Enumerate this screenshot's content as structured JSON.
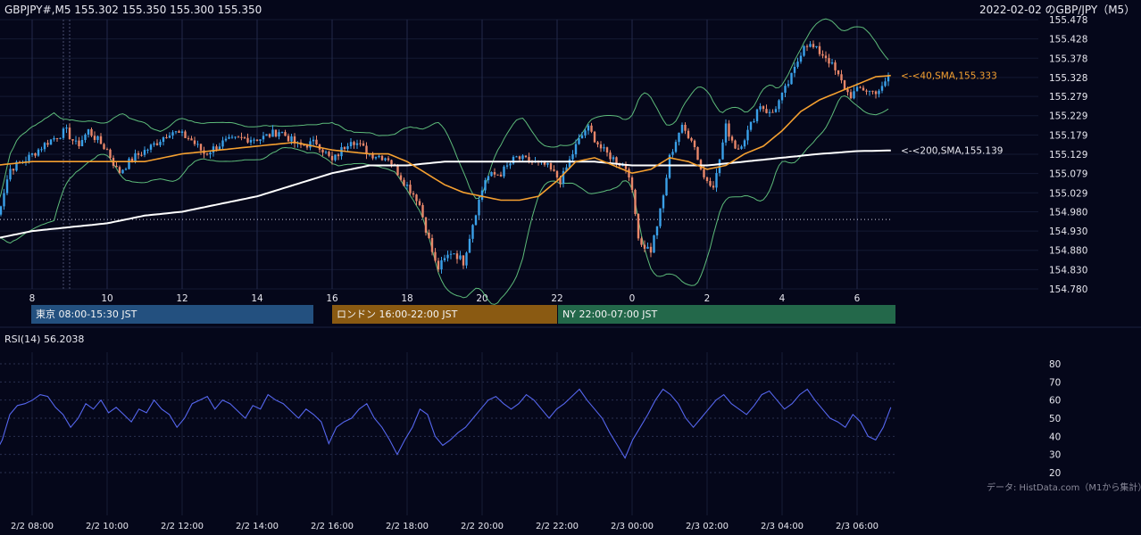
{
  "header": {
    "symbol_ohlc": "GBPJPY#,M5 155.302 155.350 155.300 155.350",
    "title_right": "2022-02-02 のGBP/JPY（M5）"
  },
  "ma_labels": {
    "sma40": "<-<40,SMA,155.333",
    "sma200": "<-<200,SMA,155.139"
  },
  "sessions": {
    "tokyo": "東京 08:00-15:30 JST",
    "london": "ロンドン 16:00-22:00 JST",
    "ny": "NY 22:00-07:00 JST"
  },
  "rsi_panel": {
    "label": "RSI(14) 56.2038"
  },
  "source_note": "データ: HistData.com（M1から集計）",
  "colors": {
    "background": "#05071a",
    "candle_up": "#3aa0e8",
    "candle_down": "#e8876a",
    "sma40": "#f5a030",
    "sma200": "#ffffff",
    "bollinger": "#5dbb7a",
    "rsi": "#5566ee",
    "tokyo": "#23507f",
    "london": "#8a5a12",
    "ny": "#23684a"
  },
  "chart_data": [
    {
      "type": "candlestick",
      "title": "GBPJPY#,M5",
      "x_tick_labels": [
        "8",
        "10",
        "12",
        "14",
        "16",
        "18",
        "20",
        "22",
        "0",
        "2",
        "4",
        "6"
      ],
      "y_tick_labels": [
        "155.478",
        "155.428",
        "155.378",
        "155.328",
        "155.279",
        "155.229",
        "155.179",
        "155.129",
        "155.079",
        "155.029",
        "154.980",
        "154.930",
        "154.880",
        "154.830",
        "154.780"
      ],
      "ylim": [
        154.78,
        155.478
      ],
      "x_range_hours": [
        7.0,
        6.9
      ],
      "grid": true,
      "reference_level": 154.96,
      "price_keypoints": [
        [
          7.0,
          154.94
        ],
        [
          7.4,
          155.09
        ],
        [
          7.9,
          155.12
        ],
        [
          8.4,
          155.16
        ],
        [
          8.9,
          155.19
        ],
        [
          9.2,
          155.15
        ],
        [
          9.5,
          155.19
        ],
        [
          10.0,
          155.14
        ],
        [
          10.3,
          155.08
        ],
        [
          10.7,
          155.12
        ],
        [
          11.2,
          155.15
        ],
        [
          11.7,
          155.19
        ],
        [
          12.2,
          155.17
        ],
        [
          12.6,
          155.13
        ],
        [
          13.1,
          155.16
        ],
        [
          13.6,
          155.17
        ],
        [
          14.1,
          155.17
        ],
        [
          14.6,
          155.19
        ],
        [
          15.1,
          155.15
        ],
        [
          15.6,
          155.16
        ],
        [
          16.0,
          155.11
        ],
        [
          16.5,
          155.17
        ],
        [
          17.0,
          155.13
        ],
        [
          17.5,
          155.12
        ],
        [
          17.9,
          155.06
        ],
        [
          18.3,
          155.01
        ],
        [
          18.6,
          154.9
        ],
        [
          18.8,
          154.83
        ],
        [
          19.2,
          154.88
        ],
        [
          19.5,
          154.85
        ],
        [
          19.8,
          154.97
        ],
        [
          20.1,
          155.07
        ],
        [
          20.5,
          155.08
        ],
        [
          20.9,
          155.12
        ],
        [
          21.3,
          155.11
        ],
        [
          21.7,
          155.1
        ],
        [
          22.1,
          155.06
        ],
        [
          22.5,
          155.15
        ],
        [
          22.8,
          155.2
        ],
        [
          23.2,
          155.14
        ],
        [
          23.6,
          155.11
        ],
        [
          23.9,
          155.09
        ],
        [
          24.2,
          154.9
        ],
        [
          24.5,
          154.88
        ],
        [
          24.8,
          155.0
        ],
        [
          25.0,
          155.12
        ],
        [
          25.3,
          155.2
        ],
        [
          25.6,
          155.17
        ],
        [
          25.9,
          155.07
        ],
        [
          26.2,
          155.05
        ],
        [
          26.5,
          155.2
        ],
        [
          26.8,
          155.14
        ],
        [
          27.1,
          155.19
        ],
        [
          27.4,
          155.26
        ],
        [
          27.7,
          155.23
        ],
        [
          28.0,
          155.28
        ],
        [
          28.3,
          155.34
        ],
        [
          28.6,
          155.42
        ],
        [
          28.9,
          155.4
        ],
        [
          29.2,
          155.38
        ],
        [
          29.5,
          155.33
        ],
        [
          29.8,
          155.28
        ],
        [
          30.1,
          155.3
        ],
        [
          30.4,
          155.29
        ],
        [
          30.7,
          155.3
        ],
        [
          30.9,
          155.35
        ]
      ],
      "sma40_keypoints": [
        [
          7.0,
          155.1
        ],
        [
          8.0,
          155.11
        ],
        [
          9.0,
          155.11
        ],
        [
          10.0,
          155.11
        ],
        [
          11.0,
          155.11
        ],
        [
          12.0,
          155.13
        ],
        [
          13.0,
          155.14
        ],
        [
          14.0,
          155.15
        ],
        [
          15.0,
          155.16
        ],
        [
          16.0,
          155.14
        ],
        [
          17.0,
          155.13
        ],
        [
          17.5,
          155.13
        ],
        [
          18.0,
          155.11
        ],
        [
          18.5,
          155.08
        ],
        [
          19.0,
          155.05
        ],
        [
          19.5,
          155.03
        ],
        [
          20.0,
          155.02
        ],
        [
          20.5,
          155.01
        ],
        [
          21.0,
          155.01
        ],
        [
          21.5,
          155.02
        ],
        [
          22.0,
          155.06
        ],
        [
          22.5,
          155.11
        ],
        [
          23.0,
          155.12
        ],
        [
          23.5,
          155.1
        ],
        [
          24.0,
          155.08
        ],
        [
          24.5,
          155.09
        ],
        [
          25.0,
          155.12
        ],
        [
          25.5,
          155.11
        ],
        [
          26.0,
          155.09
        ],
        [
          26.5,
          155.1
        ],
        [
          27.0,
          155.13
        ],
        [
          27.5,
          155.15
        ],
        [
          28.0,
          155.19
        ],
        [
          28.5,
          155.24
        ],
        [
          29.0,
          155.27
        ],
        [
          29.5,
          155.29
        ],
        [
          30.0,
          155.31
        ],
        [
          30.5,
          155.33
        ],
        [
          30.9,
          155.333
        ]
      ],
      "sma200_keypoints": [
        [
          7.0,
          154.91
        ],
        [
          8.0,
          154.93
        ],
        [
          9.0,
          154.94
        ],
        [
          10.0,
          154.95
        ],
        [
          11.0,
          154.97
        ],
        [
          12.0,
          154.98
        ],
        [
          13.0,
          155.0
        ],
        [
          14.0,
          155.02
        ],
        [
          15.0,
          155.05
        ],
        [
          16.0,
          155.08
        ],
        [
          17.0,
          155.1
        ],
        [
          18.0,
          155.1
        ],
        [
          19.0,
          155.11
        ],
        [
          20.0,
          155.11
        ],
        [
          21.0,
          155.11
        ],
        [
          22.0,
          155.11
        ],
        [
          23.0,
          155.11
        ],
        [
          24.0,
          155.1
        ],
        [
          25.0,
          155.1
        ],
        [
          26.0,
          155.1
        ],
        [
          27.0,
          155.11
        ],
        [
          28.0,
          155.12
        ],
        [
          29.0,
          155.13
        ],
        [
          30.0,
          155.137
        ],
        [
          30.9,
          155.139
        ]
      ]
    },
    {
      "type": "line",
      "title": "RSI(14) 56.2038",
      "x_tick_labels": [
        "2/2 08:00",
        "2/2 10:00",
        "2/2 12:00",
        "2/2 14:00",
        "2/2 16:00",
        "2/2 18:00",
        "2/2 20:00",
        "2/2 22:00",
        "2/3 00:00",
        "2/3 02:00",
        "2/3 04:00",
        "2/3 06:00"
      ],
      "y_tick_labels": [
        "80",
        "70",
        "60",
        "50",
        "40",
        "30",
        "20"
      ],
      "ylim": [
        15,
        87
      ],
      "grid": true,
      "series": [
        {
          "values": [
            30,
            38,
            52,
            57,
            58,
            60,
            63,
            62,
            56,
            52,
            45,
            50,
            58,
            55,
            60,
            53,
            56,
            52,
            48,
            55,
            53,
            60,
            55,
            52,
            45,
            50,
            58,
            60,
            62,
            55,
            60,
            58,
            54,
            50,
            57,
            55,
            63,
            60,
            58,
            54,
            50,
            55,
            52,
            48,
            36,
            45,
            48,
            50,
            55,
            58,
            50,
            45,
            38,
            30,
            38,
            45,
            55,
            52,
            40,
            35,
            38,
            42,
            45,
            50,
            55,
            60,
            62,
            58,
            55,
            58,
            63,
            60,
            55,
            50,
            55,
            58,
            62,
            66,
            60,
            55,
            50,
            42,
            35,
            28,
            38,
            45,
            52,
            60,
            66,
            63,
            58,
            50,
            45,
            50,
            55,
            60,
            63,
            58,
            55,
            52,
            57,
            63,
            65,
            60,
            55,
            58,
            63,
            66,
            60,
            55,
            50,
            48,
            45,
            52,
            48,
            40,
            38,
            45,
            56
          ]
        }
      ]
    }
  ]
}
